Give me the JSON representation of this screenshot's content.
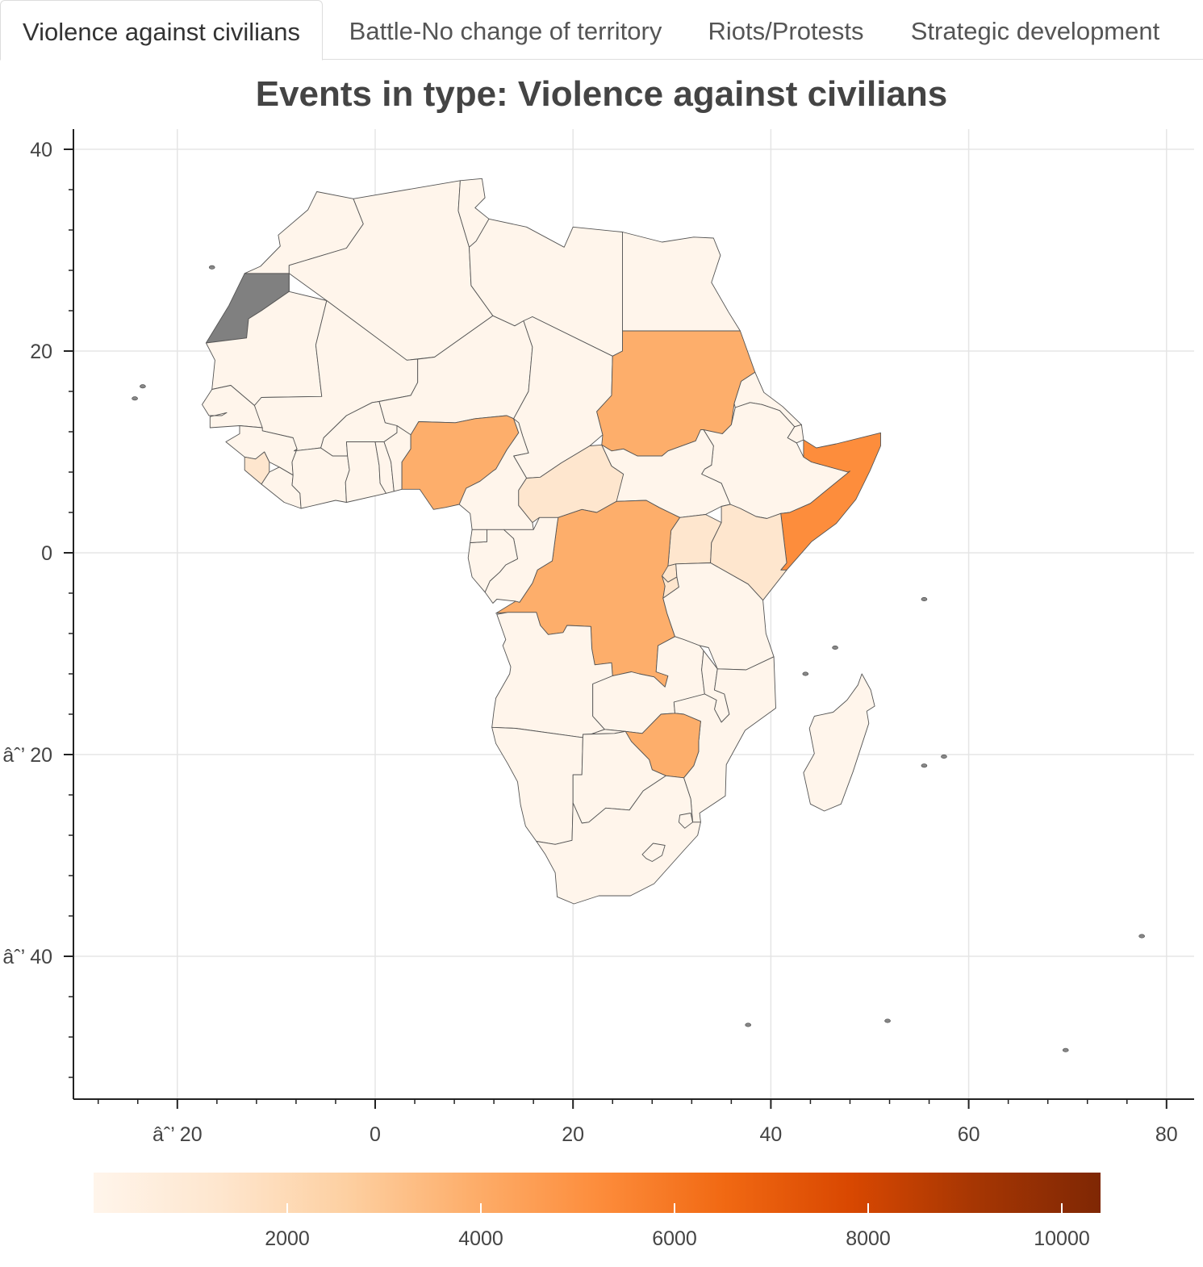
{
  "tabs": [
    {
      "label": "Violence against civilians",
      "active": true
    },
    {
      "label": "Battle-No change of territory",
      "active": false
    },
    {
      "label": "Riots/Protests",
      "active": false
    },
    {
      "label": "Strategic development",
      "active": false
    }
  ],
  "chart_title": "Events in type: Violence against civilians",
  "axes": {
    "x_ticks": [
      {
        "v": -20,
        "label": "âˆ’ 20"
      },
      {
        "v": 0,
        "label": "0"
      },
      {
        "v": 20,
        "label": "20"
      },
      {
        "v": 40,
        "label": "40"
      },
      {
        "v": 60,
        "label": "60"
      },
      {
        "v": 80,
        "label": "80"
      }
    ],
    "y_ticks": [
      {
        "v": 40,
        "label": "40"
      },
      {
        "v": 20,
        "label": "20"
      },
      {
        "v": 0,
        "label": "0"
      },
      {
        "v": -20,
        "label": "âˆ’ 20"
      },
      {
        "v": -40,
        "label": "âˆ’ 40"
      }
    ],
    "xlim": [
      -30,
      82
    ],
    "ylim": [
      -54,
      42
    ],
    "grid": true
  },
  "colorbar": {
    "min": 0,
    "max": 10400,
    "ticks": [
      2000,
      4000,
      6000,
      8000,
      10000
    ],
    "colors": [
      "#fff5eb",
      "#fee6ce",
      "#fdd0a2",
      "#fdae6b",
      "#fd8d3c",
      "#f16913",
      "#d94801",
      "#a63603",
      "#7f2704"
    ],
    "missing_color": "#808080"
  },
  "chart_data": {
    "type": "choropleth",
    "region": "Africa",
    "value_name": "Events in type: Violence against civilians",
    "countries": [
      {
        "name": "Western Sahara",
        "value": null
      },
      {
        "name": "Morocco",
        "value": 300
      },
      {
        "name": "Algeria",
        "value": 900
      },
      {
        "name": "Tunisia",
        "value": 300
      },
      {
        "name": "Libya",
        "value": 900
      },
      {
        "name": "Egypt",
        "value": 800
      },
      {
        "name": "Mauritania",
        "value": 200
      },
      {
        "name": "Mali",
        "value": 500
      },
      {
        "name": "Niger",
        "value": 400
      },
      {
        "name": "Chad",
        "value": 400
      },
      {
        "name": "Sudan",
        "value": 4100
      },
      {
        "name": "Eritrea",
        "value": 300
      },
      {
        "name": "Ethiopia",
        "value": 1000
      },
      {
        "name": "Djibouti",
        "value": 100
      },
      {
        "name": "Somalia",
        "value": 5300
      },
      {
        "name": "Senegal",
        "value": 300
      },
      {
        "name": "Guinea",
        "value": 500
      },
      {
        "name": "Sierra Leone",
        "value": 1400
      },
      {
        "name": "Liberia",
        "value": 500
      },
      {
        "name": "Cote d'Ivoire",
        "value": 600
      },
      {
        "name": "Burkina Faso",
        "value": 200
      },
      {
        "name": "Ghana",
        "value": 200
      },
      {
        "name": "Togo",
        "value": 100
      },
      {
        "name": "Benin",
        "value": 100
      },
      {
        "name": "Nigeria",
        "value": 3900
      },
      {
        "name": "Cameroon",
        "value": 400
      },
      {
        "name": "Central African Republic",
        "value": 1200
      },
      {
        "name": "South Sudan",
        "value": 800
      },
      {
        "name": "Uganda",
        "value": 1900
      },
      {
        "name": "Kenya",
        "value": 1500
      },
      {
        "name": "DR Congo",
        "value": 4000
      },
      {
        "name": "Congo",
        "value": 300
      },
      {
        "name": "Gabon",
        "value": 100
      },
      {
        "name": "Equatorial Guinea",
        "value": 100
      },
      {
        "name": "Rwanda",
        "value": 1300
      },
      {
        "name": "Burundi",
        "value": 2000
      },
      {
        "name": "Tanzania",
        "value": 300
      },
      {
        "name": "Angola",
        "value": 900
      },
      {
        "name": "Zambia",
        "value": 400
      },
      {
        "name": "Malawi",
        "value": 300
      },
      {
        "name": "Mozambique",
        "value": 500
      },
      {
        "name": "Zimbabwe",
        "value": 3900
      },
      {
        "name": "Namibia",
        "value": 200
      },
      {
        "name": "Botswana",
        "value": 100
      },
      {
        "name": "South Africa",
        "value": 1100
      },
      {
        "name": "Lesotho",
        "value": 100
      },
      {
        "name": "Swaziland",
        "value": 100
      },
      {
        "name": "Madagascar",
        "value": 400
      }
    ]
  }
}
